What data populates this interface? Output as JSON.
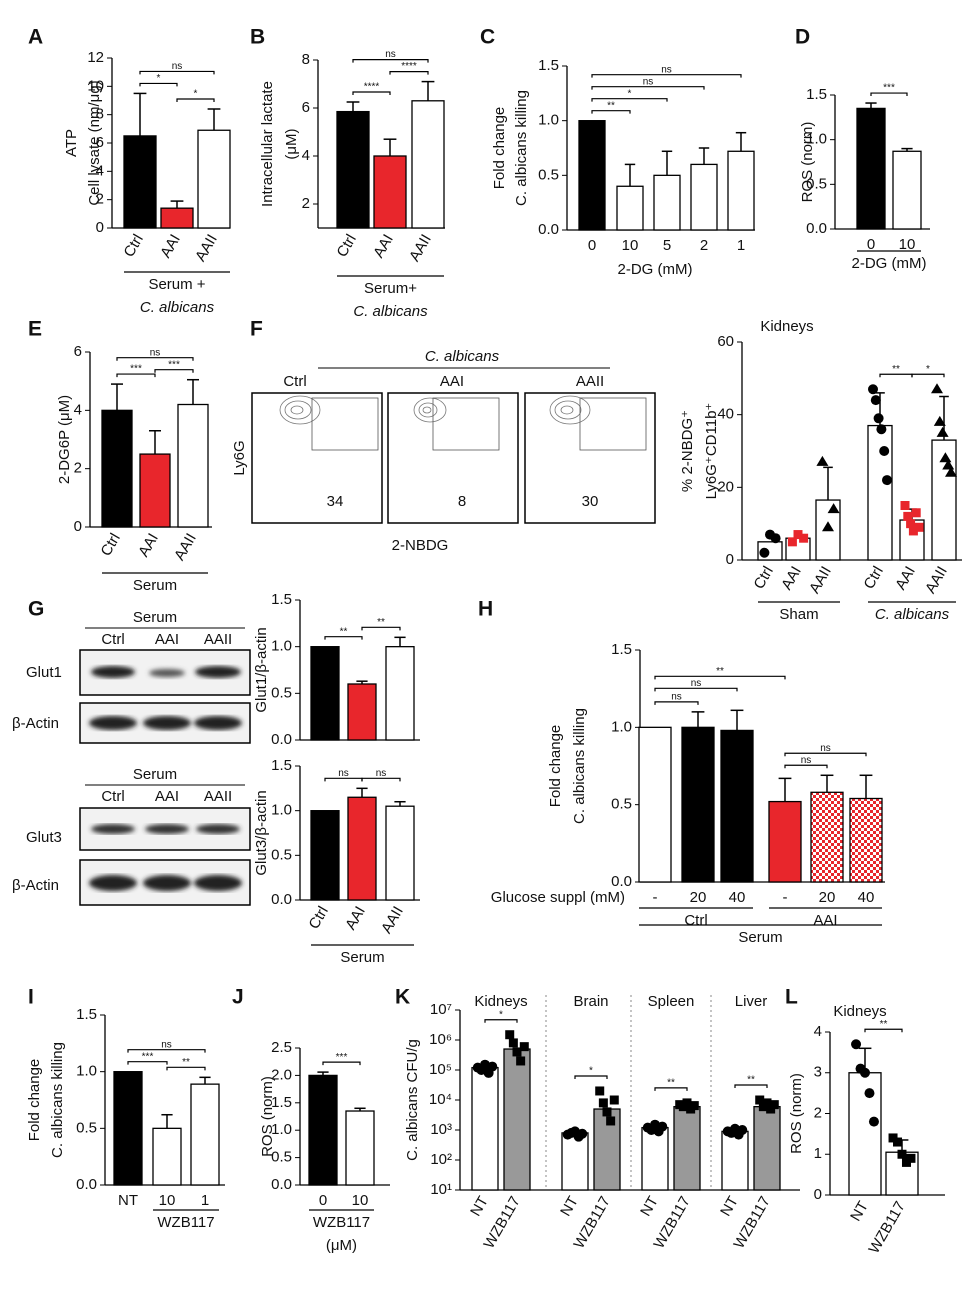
{
  "chart_data": [
    {
      "type": "bar",
      "label": "A",
      "ylabel": [
        "ATP",
        "Cell lysate (nm/μg)"
      ],
      "categories": [
        "Ctrl",
        "AAI",
        "AAII"
      ],
      "values": [
        6.5,
        1.4,
        6.9
      ],
      "errors": [
        3.0,
        0.5,
        1.5
      ],
      "colors": [
        "#000000",
        "#e8262c",
        "#ffffff"
      ],
      "ylim": [
        0,
        12
      ],
      "yticks": [
        0,
        2,
        4,
        6,
        8,
        10,
        12
      ],
      "brackets": [
        {
          "from": 0,
          "to": 1,
          "label": "*"
        },
        {
          "from": 1,
          "to": 2,
          "label": "*"
        },
        {
          "from": 0,
          "to": 2,
          "label": "ns"
        }
      ],
      "groups": [
        {
          "from": 0,
          "to": 2,
          "label": "Serum +",
          "sublabel": "C. albicans"
        }
      ]
    },
    {
      "type": "bar",
      "label": "B",
      "ylabel": [
        "Intracellular lactate",
        "(μM)"
      ],
      "categories": [
        "Ctrl",
        "AAI",
        "AAII"
      ],
      "values": [
        5.85,
        4.0,
        6.3
      ],
      "errors": [
        0.4,
        0.7,
        0.8
      ],
      "colors": [
        "#000000",
        "#e8262c",
        "#ffffff"
      ],
      "ylim": [
        1,
        8
      ],
      "yticks": [
        2,
        4,
        6,
        8
      ],
      "brackets": [
        {
          "from": 0,
          "to": 1,
          "label": "****"
        },
        {
          "from": 1,
          "to": 2,
          "label": "****"
        },
        {
          "from": 0,
          "to": 2,
          "label": "ns"
        }
      ],
      "groups": [
        {
          "from": 0,
          "to": 2,
          "label": "Serum+",
          "sublabel": "C. albicans"
        }
      ]
    },
    {
      "type": "bar",
      "label": "C",
      "ylabel": [
        "Fold change",
        "C. albicans killing"
      ],
      "categories": [
        "0",
        "10",
        "5",
        "2",
        "1"
      ],
      "xlabel": "2-DG (mM)",
      "values": [
        1.0,
        0.4,
        0.5,
        0.6,
        0.72
      ],
      "errors": [
        0.0,
        0.2,
        0.22,
        0.15,
        0.17
      ],
      "colors": [
        "#000000",
        "#ffffff",
        "#ffffff",
        "#ffffff",
        "#ffffff"
      ],
      "ylim": [
        0,
        1.5
      ],
      "yticks": [
        {
          "value": 0,
          "label": "0.0"
        },
        0.5,
        {
          "value": 1,
          "label": "1.0"
        },
        1.5
      ],
      "brackets": [
        {
          "from": 0,
          "to": 1,
          "label": "**"
        },
        {
          "from": 0,
          "to": 2,
          "label": "*"
        },
        {
          "from": 0,
          "to": 3,
          "label": "ns"
        },
        {
          "from": 0,
          "to": 4,
          "label": "ns"
        }
      ]
    },
    {
      "type": "bar",
      "label": "D",
      "ylabel": [
        "ROS (norm)"
      ],
      "categories": [
        "0",
        "10"
      ],
      "values": [
        1.35,
        0.87
      ],
      "errors": [
        0.06,
        0.03
      ],
      "colors": [
        "#000000",
        "#ffffff"
      ],
      "ylim": [
        0,
        1.5
      ],
      "yticks": [
        {
          "value": 0,
          "label": "0.0"
        },
        0.5,
        {
          "value": 1,
          "label": "1.0"
        },
        1.5
      ],
      "brackets": [
        {
          "from": 0,
          "to": 1,
          "label": "***"
        }
      ],
      "groups": [
        {
          "from": 0,
          "to": 1,
          "label": "2-DG (mM)"
        }
      ]
    },
    {
      "type": "bar",
      "label": "E",
      "ylabel": [
        "2-DG6P (μM)"
      ],
      "categories": [
        "Ctrl",
        "AAI",
        "AAII"
      ],
      "values": [
        4.0,
        2.5,
        4.2
      ],
      "errors": [
        0.9,
        0.8,
        0.85
      ],
      "colors": [
        "#000000",
        "#e8262c",
        "#ffffff"
      ],
      "ylim": [
        0,
        6
      ],
      "yticks": [
        0,
        2,
        4,
        6
      ],
      "brackets": [
        {
          "from": 0,
          "to": 1,
          "label": "***"
        },
        {
          "from": 1,
          "to": 2,
          "label": "***"
        },
        {
          "from": 0,
          "to": 2,
          "label": "ns"
        }
      ],
      "groups": [
        {
          "from": 0,
          "to": 2,
          "label": "Serum"
        }
      ]
    },
    {
      "type": "bar",
      "title": "Kidneys",
      "ylabel": [
        "% 2-NBDG⁺",
        "Ly6G⁺CD11b⁺"
      ],
      "categories": [
        "Ctrl",
        "AAI",
        "AAII",
        "Ctrl",
        "AAI",
        "AAII"
      ],
      "values": [
        5,
        6,
        16.5,
        37,
        11,
        33
      ],
      "errors": [
        0,
        0,
        9,
        9,
        3,
        12
      ],
      "colors": [
        "#ffffff",
        "#ffffff",
        "#ffffff",
        "#ffffff",
        "#ffffff",
        "#ffffff"
      ],
      "points": [
        [
          2,
          7,
          6
        ],
        [
          5,
          7,
          6
        ],
        [
          27,
          9,
          14
        ],
        [
          47,
          44,
          39,
          36,
          30,
          22
        ],
        [
          15,
          12,
          10,
          8,
          13,
          9
        ],
        [
          47,
          38,
          35,
          28,
          26,
          24
        ]
      ],
      "markers": [
        "circle",
        "square",
        "triangle",
        "circle",
        "square",
        "triangle"
      ],
      "point_colors": [
        "#000000",
        "#e8262c",
        "#000000",
        "#000000",
        "#e8262c",
        "#000000"
      ],
      "ylim": [
        0,
        60
      ],
      "yticks": [
        0,
        20,
        40,
        60
      ],
      "brackets": [
        {
          "from": 3,
          "to": 4,
          "label": "**"
        },
        {
          "from": 4,
          "to": 5,
          "label": "*"
        }
      ],
      "groups": [
        {
          "from": 0,
          "to": 2,
          "label": "Sham"
        },
        {
          "from": 3,
          "to": 5,
          "label": "C. albicans",
          "italic": true
        }
      ]
    },
    {
      "type": "bar",
      "ylabel": [
        "Glut1/β-actin"
      ],
      "values": [
        1.0,
        0.6,
        1.0
      ],
      "errors": [
        0,
        0.03,
        0.1
      ],
      "colors": [
        "#000000",
        "#e8262c",
        "#ffffff"
      ],
      "ylim": [
        0,
        1.5
      ],
      "yticks": [
        {
          "value": 0,
          "label": "0.0"
        },
        0.5,
        {
          "value": 1,
          "label": "1.0"
        },
        1.5
      ],
      "brackets": [
        {
          "from": 0,
          "to": 1,
          "label": "**"
        },
        {
          "from": 1,
          "to": 2,
          "label": "**"
        }
      ]
    },
    {
      "type": "bar",
      "ylabel": [
        "Glut3/β-actin"
      ],
      "categories": [
        "Ctrl",
        "AAI",
        "AAII"
      ],
      "values": [
        1.0,
        1.15,
        1.05
      ],
      "errors": [
        0,
        0.1,
        0.05
      ],
      "colors": [
        "#000000",
        "#e8262c",
        "#ffffff"
      ],
      "ylim": [
        0,
        1.5
      ],
      "yticks": [
        {
          "value": 0,
          "label": "0.0"
        },
        0.5,
        {
          "value": 1,
          "label": "1.0"
        },
        1.5
      ],
      "brackets": [
        {
          "from": 0,
          "to": 1,
          "label": "ns"
        },
        {
          "from": 1,
          "to": 2,
          "label": "ns"
        }
      ],
      "groups": [
        {
          "from": 0,
          "to": 2,
          "label": "Serum"
        }
      ]
    },
    {
      "type": "bar",
      "label": "H",
      "ylabel": [
        "Fold change",
        "C. albicans killing"
      ],
      "row_label": "Glucose suppl (mM)",
      "categories": [
        "-",
        "20",
        "40",
        "-",
        "20",
        "40"
      ],
      "values": [
        1.0,
        1.0,
        0.98,
        0.52,
        0.58,
        0.54
      ],
      "errors": [
        0,
        0.1,
        0.13,
        0.15,
        0.11,
        0.15
      ],
      "colors": [
        "#ffffff",
        "#000000",
        "#000000",
        "#e8262c",
        "#e8262c",
        "#e8262c"
      ],
      "patterned": [
        false,
        false,
        false,
        false,
        true,
        true
      ],
      "ylim": [
        0,
        1.5
      ],
      "yticks": [
        {
          "value": 0,
          "label": "0.0"
        },
        0.5,
        {
          "value": 1,
          "label": "1.0"
        },
        1.5
      ],
      "brackets": [
        {
          "from": 0,
          "to": 1,
          "label": "ns"
        },
        {
          "from": 0,
          "to": 2,
          "label": "ns"
        },
        {
          "from": 0,
          "to": 3,
          "label": "**"
        },
        {
          "from": 3,
          "to": 4,
          "label": "ns"
        },
        {
          "from": 3,
          "to": 5,
          "label": "ns"
        }
      ],
      "groups": [
        {
          "from": 0,
          "to": 2,
          "label": "Ctrl"
        },
        {
          "from": 3,
          "to": 5,
          "label": "AAI"
        }
      ],
      "supergroups": [
        {
          "from": 0,
          "to": 5,
          "label": "Serum"
        }
      ]
    },
    {
      "type": "bar",
      "label": "I",
      "ylabel": [
        "Fold change",
        "C. albicans killing"
      ],
      "categories": [
        "NT",
        "10",
        "1"
      ],
      "values": [
        1.0,
        0.5,
        0.89
      ],
      "errors": [
        0,
        0.12,
        0.06
      ],
      "colors": [
        "#000000",
        "#ffffff",
        "#ffffff"
      ],
      "ylim": [
        0,
        1.5
      ],
      "yticks": [
        {
          "value": 0,
          "label": "0.0"
        },
        0.5,
        {
          "value": 1,
          "label": "1.0"
        },
        1.5
      ],
      "brackets": [
        {
          "from": 0,
          "to": 1,
          "label": "***"
        },
        {
          "from": 1,
          "to": 2,
          "label": "**"
        },
        {
          "from": 0,
          "to": 2,
          "label": "ns"
        }
      ],
      "groups": [
        {
          "from": 1,
          "to": 2,
          "label": "WZB117"
        }
      ]
    },
    {
      "type": "bar",
      "label": "J",
      "ylabel": [
        "ROS (norm)"
      ],
      "categories": [
        "0",
        "10"
      ],
      "values": [
        2.0,
        1.35
      ],
      "errors": [
        0.06,
        0.05
      ],
      "colors": [
        "#000000",
        "#ffffff"
      ],
      "ylim": [
        0,
        2.5
      ],
      "yticks": [
        {
          "value": 0,
          "label": "0.0"
        },
        0.5,
        {
          "value": 1,
          "label": "1.0"
        },
        1.5,
        {
          "value": 2,
          "label": "2.0"
        },
        2.5
      ],
      "brackets": [
        {
          "from": 0,
          "to": 1,
          "label": "***"
        }
      ],
      "groups": [
        {
          "from": 0,
          "to": 1,
          "label": "WZB117",
          "sublabel": "(μM)",
          "plain": true
        }
      ]
    },
    {
      "type": "bar",
      "label": "K",
      "log": true,
      "ylabel": [
        "C. albicans CFU/g"
      ],
      "categories": [
        "NT",
        "WZB117",
        "NT",
        "WZB117",
        "NT",
        "WZB117",
        "NT",
        "WZB117"
      ],
      "values": [
        120000,
        500000,
        800,
        5000,
        1200,
        6000,
        900,
        6000
      ],
      "colors": [
        "#ffffff",
        "#999999",
        "#ffffff",
        "#999999",
        "#ffffff",
        "#999999",
        "#ffffff",
        "#999999"
      ],
      "points": [
        [
          120000,
          100000,
          150000,
          80000,
          130000
        ],
        [
          1500000,
          800000,
          400000,
          200000,
          600000
        ],
        [
          700,
          800,
          900,
          600,
          750
        ],
        [
          20000,
          8000,
          4000,
          2000,
          10000
        ],
        [
          1200,
          1000,
          1500,
          900,
          1300
        ],
        [
          7000,
          6000,
          8000,
          5000,
          6500
        ],
        [
          900,
          800,
          1100,
          700,
          1000
        ],
        [
          10000,
          6000,
          8000,
          5000,
          7000
        ]
      ],
      "markers": [
        "circle",
        "square",
        "circle",
        "square",
        "circle",
        "square",
        "circle",
        "square"
      ],
      "point_colors": [
        "#000000",
        "#000000",
        "#000000",
        "#000000",
        "#000000",
        "#000000",
        "#000000",
        "#000000"
      ],
      "ylim": [
        10,
        10000000
      ],
      "yticks": [
        {
          "value": 10,
          "label": "10¹"
        },
        {
          "value": 100,
          "label": "10²"
        },
        {
          "value": 1000,
          "label": "10³"
        },
        {
          "value": 10000,
          "label": "10⁴"
        },
        {
          "value": 100000,
          "label": "10⁵"
        },
        {
          "value": 1000000,
          "label": "10⁶"
        },
        {
          "value": 10000000,
          "label": "10⁷"
        }
      ],
      "brackets": [
        {
          "from": 0,
          "to": 1,
          "label": "*"
        },
        {
          "from": 2,
          "to": 3,
          "label": "*"
        },
        {
          "from": 4,
          "to": 5,
          "label": "**"
        },
        {
          "from": 6,
          "to": 7,
          "label": "**"
        }
      ],
      "panels": [
        {
          "from": 0,
          "to": 1,
          "label": "Kidneys"
        },
        {
          "from": 2,
          "to": 3,
          "label": "Brain"
        },
        {
          "from": 4,
          "to": 5,
          "label": "Spleen"
        },
        {
          "from": 6,
          "to": 7,
          "label": "Liver"
        }
      ]
    },
    {
      "type": "bar",
      "label": "L",
      "title": "Kidneys",
      "ylabel": [
        "ROS (norm)"
      ],
      "categories": [
        "NT",
        "WZB117"
      ],
      "values": [
        3.0,
        1.05
      ],
      "errors": [
        0.6,
        0.3
      ],
      "colors": [
        "#ffffff",
        "#ffffff"
      ],
      "points": [
        [
          3.7,
          3.1,
          3.0,
          2.5,
          1.8
        ],
        [
          1.4,
          1.3,
          1.0,
          0.8,
          0.9
        ]
      ],
      "markers": [
        "circle",
        "square"
      ],
      "point_colors": [
        "#000000",
        "#000000"
      ],
      "ylim": [
        0,
        4
      ],
      "yticks": [
        0,
        1,
        2,
        3,
        4
      ],
      "brackets": [
        {
          "from": 0,
          "to": 1,
          "label": "**"
        }
      ]
    }
  ],
  "flow": {
    "label": "F",
    "title": "C. albicans",
    "samples": [
      "Ctrl",
      "AAI",
      "AAII"
    ],
    "gates": [
      34,
      8,
      30
    ],
    "ylabel": "Ly6G",
    "xlabel": "2-NBDG"
  },
  "blots": {
    "label": "G",
    "sets": [
      {
        "header": "Serum",
        "lanes": [
          "Ctrl",
          "AAI",
          "AAII"
        ],
        "rows": [
          "Glut1",
          "β-Actin"
        ]
      },
      {
        "header": "Serum",
        "lanes": [
          "Ctrl",
          "AAI",
          "AAII"
        ],
        "rows": [
          "Glut3",
          "β-Actin"
        ]
      }
    ]
  }
}
